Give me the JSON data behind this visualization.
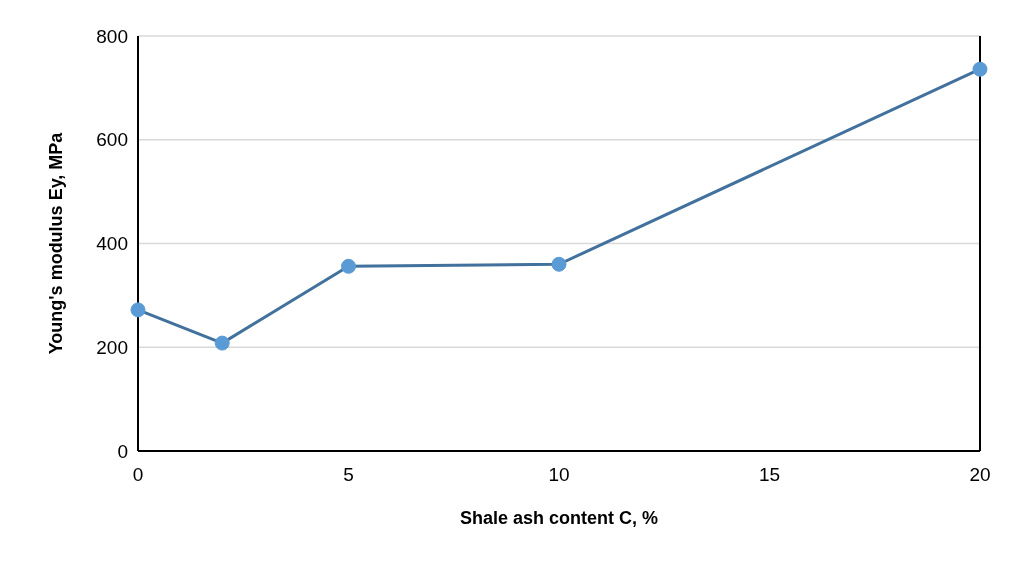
{
  "chart_data": {
    "type": "line",
    "xlabel": "Shale ash content C, %",
    "ylabel": "Young's modulus Ey, MPa",
    "x": [
      0,
      2,
      5,
      10,
      20
    ],
    "series": [
      {
        "color": "#41719c",
        "values": [
          272,
          208,
          356,
          360,
          736
        ]
      }
    ],
    "xlim": [
      0,
      20
    ],
    "xticks": [
      0,
      5,
      10,
      15,
      20
    ],
    "ylim": [
      0,
      800
    ],
    "yticks": [
      0,
      200,
      400,
      600,
      800
    ],
    "grid": "y",
    "marker": "circle",
    "line_style": "solid"
  }
}
